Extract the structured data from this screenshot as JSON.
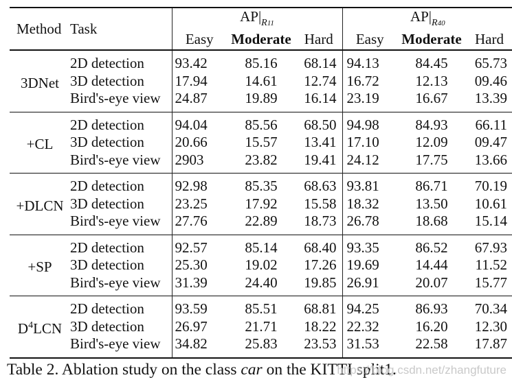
{
  "header": {
    "method": "Method",
    "task": "Task",
    "groups": [
      {
        "prefix": "AP|",
        "subscript": "R11"
      },
      {
        "prefix": "AP|",
        "subscript": "R40"
      }
    ],
    "cols": [
      "Easy",
      "Moderate",
      "Hard",
      "Easy",
      "Moderate",
      "Hard"
    ]
  },
  "sections": [
    {
      "method": "3DNet",
      "method_bold": false,
      "rows": [
        {
          "task": "2D detection",
          "task_bold": false,
          "values": [
            "93.42",
            "85.16",
            "68.14",
            "94.13",
            "84.45",
            "65.73"
          ],
          "bold": [
            false,
            false,
            false,
            false,
            false,
            false
          ]
        },
        {
          "task": "3D detection",
          "task_bold": true,
          "values": [
            "17.94",
            "14.61",
            "12.74",
            "16.72",
            "12.13",
            "09.46"
          ],
          "bold": [
            false,
            false,
            false,
            false,
            false,
            false
          ]
        },
        {
          "task": "Bird's-eye view",
          "task_bold": false,
          "values": [
            "24.87",
            "19.89",
            "16.14",
            "23.19",
            "16.67",
            "13.39"
          ],
          "bold": [
            false,
            false,
            false,
            false,
            false,
            false
          ]
        }
      ]
    },
    {
      "method": "+CL",
      "method_bold": false,
      "rows": [
        {
          "task": "2D detection",
          "task_bold": false,
          "values": [
            "94.04",
            "85.56",
            "68.50",
            "94.98",
            "84.93",
            "66.11"
          ],
          "bold": [
            true,
            true,
            false,
            true,
            false,
            false
          ]
        },
        {
          "task": "3D detection",
          "task_bold": true,
          "values": [
            "20.66",
            "15.57",
            "13.41",
            "17.10",
            "12.09",
            "09.47"
          ],
          "bold": [
            false,
            false,
            false,
            false,
            false,
            false
          ]
        },
        {
          "task": "Bird's-eye view",
          "task_bold": false,
          "values": [
            "2903",
            "23.82",
            "19.41",
            "24.12",
            "17.75",
            "13.66"
          ],
          "bold": [
            false,
            false,
            false,
            false,
            false,
            false
          ]
        }
      ]
    },
    {
      "method": "+DLCN",
      "method_bold": false,
      "rows": [
        {
          "task": "2D detection",
          "task_bold": false,
          "values": [
            "92.98",
            "85.35",
            "68.63",
            "93.81",
            "86.71",
            "70.19"
          ],
          "bold": [
            false,
            false,
            false,
            false,
            false,
            false
          ]
        },
        {
          "task": "3D detection",
          "task_bold": true,
          "values": [
            "23.25",
            "17.92",
            "15.58",
            "18.32",
            "13.50",
            "10.61"
          ],
          "bold": [
            false,
            false,
            false,
            false,
            false,
            false
          ]
        },
        {
          "task": "Bird's-eye view",
          "task_bold": false,
          "values": [
            "27.76",
            "22.89",
            "18.73",
            "26.78",
            "18.68",
            "15.14"
          ],
          "bold": [
            false,
            false,
            false,
            false,
            false,
            false
          ]
        }
      ]
    },
    {
      "method": "+SP",
      "method_bold": false,
      "rows": [
        {
          "task": "2D detection",
          "task_bold": false,
          "values": [
            "92.57",
            "85.14",
            "68.40",
            "93.35",
            "86.52",
            "67.93"
          ],
          "bold": [
            false,
            false,
            false,
            false,
            false,
            false
          ]
        },
        {
          "task": "3D detection",
          "task_bold": true,
          "values": [
            "25.30",
            "19.02",
            "17.26",
            "19.69",
            "14.44",
            "11.52"
          ],
          "bold": [
            false,
            false,
            false,
            false,
            false,
            false
          ]
        },
        {
          "task": "Bird's-eye view",
          "task_bold": false,
          "values": [
            "31.39",
            "24.40",
            "19.85",
            "26.91",
            "20.07",
            "15.77"
          ],
          "bold": [
            false,
            false,
            false,
            false,
            false,
            false
          ]
        }
      ]
    },
    {
      "method": "D4LCN",
      "method_bold": true,
      "method_sup": "4",
      "rows": [
        {
          "task": "2D detection",
          "task_bold": false,
          "values": [
            "93.59",
            "85.51",
            "68.81",
            "94.25",
            "86.93",
            "70.34"
          ],
          "bold": [
            false,
            false,
            true,
            false,
            true,
            true
          ]
        },
        {
          "task": "3D detection",
          "task_bold": true,
          "values": [
            "26.97",
            "21.71",
            "18.22",
            "22.32",
            "16.20",
            "12.30"
          ],
          "bold": [
            true,
            true,
            true,
            true,
            true,
            true
          ]
        },
        {
          "task": "Bird's-eye view",
          "task_bold": false,
          "values": [
            "34.82",
            "25.83",
            "23.53",
            "31.53",
            "22.58",
            "17.87"
          ],
          "bold": [
            true,
            true,
            true,
            true,
            true,
            true
          ]
        }
      ]
    }
  ],
  "caption": {
    "prefix": "Table 2. Ablation study on the class ",
    "class_name": "car",
    "suffix": " on the KITTI split1."
  },
  "watermark": "https://blog.csdn.net/zhangfuture"
}
